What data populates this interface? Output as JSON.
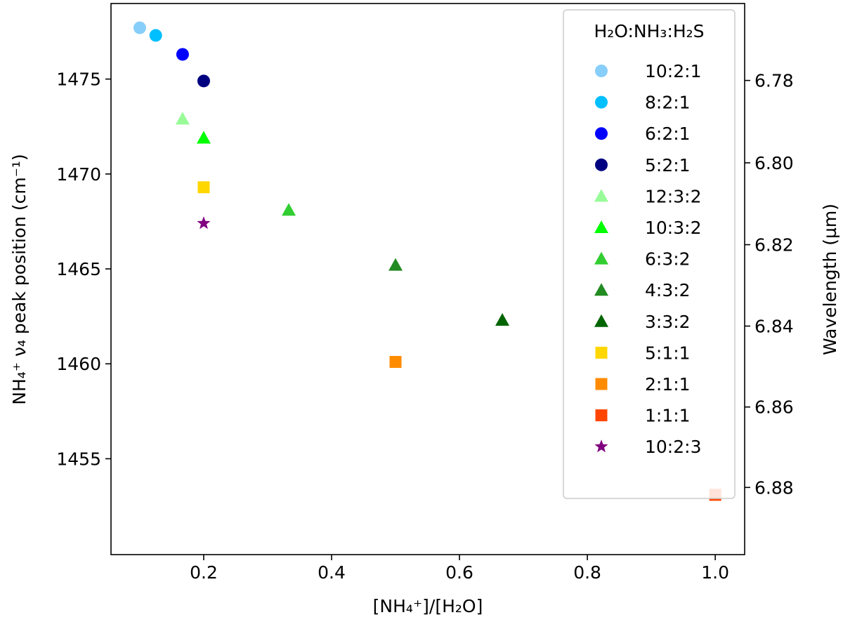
{
  "chart_data": {
    "type": "scatter",
    "xlabel": "[NH₄⁺]/[H₂O]",
    "ylabel": "NH₄⁺ ν₄ peak position (cm⁻¹)",
    "y2label": "Wavelength (µm)",
    "xlim": [
      0.055,
      1.046
    ],
    "ylim": [
      1449.95,
      1478.98
    ],
    "xticks": [
      0.2,
      0.4,
      0.6,
      0.8,
      1.0
    ],
    "xtick_labels": [
      "0.2",
      "0.4",
      "0.6",
      "0.8",
      "1.0"
    ],
    "yticks": [
      1455,
      1460,
      1465,
      1470,
      1475
    ],
    "ytick_labels": [
      "1455",
      "1460",
      "1465",
      "1470",
      "1475"
    ],
    "y2ticks": [
      6.78,
      6.8,
      6.82,
      6.84,
      6.86,
      6.88
    ],
    "y2tick_labels": [
      "6.78",
      "6.80",
      "6.82",
      "6.84",
      "6.86",
      "6.88"
    ],
    "grid": false,
    "legend_title": "H₂O:NH₃:H₂S",
    "legend_placement": "upper-right",
    "series": [
      {
        "name": "10:2:1",
        "marker": "circle",
        "color": "#87CEFA",
        "x": [
          0.1
        ],
        "y": [
          1477.7
        ]
      },
      {
        "name": "8:2:1",
        "marker": "circle",
        "color": "#00BFFF",
        "x": [
          0.125
        ],
        "y": [
          1477.3
        ]
      },
      {
        "name": "6:2:1",
        "marker": "circle",
        "color": "#0000FF",
        "x": [
          0.167
        ],
        "y": [
          1476.3
        ]
      },
      {
        "name": "5:2:1",
        "marker": "circle",
        "color": "#000080",
        "x": [
          0.2
        ],
        "y": [
          1474.9
        ]
      },
      {
        "name": "12:3:2",
        "marker": "triangle",
        "color": "#98FB98",
        "x": [
          0.167
        ],
        "y": [
          1472.9
        ]
      },
      {
        "name": "10:3:2",
        "marker": "triangle",
        "color": "#00FF00",
        "x": [
          0.2
        ],
        "y": [
          1471.9
        ]
      },
      {
        "name": "6:3:2",
        "marker": "triangle",
        "color": "#32CD32",
        "x": [
          0.333
        ],
        "y": [
          1468.1
        ]
      },
      {
        "name": "4:3:2",
        "marker": "triangle",
        "color": "#228B22",
        "x": [
          0.5
        ],
        "y": [
          1465.2
        ]
      },
      {
        "name": "3:3:2",
        "marker": "triangle",
        "color": "#006400",
        "x": [
          0.667
        ],
        "y": [
          1462.3
        ]
      },
      {
        "name": "5:1:1",
        "marker": "square",
        "color": "#FFD700",
        "x": [
          0.2
        ],
        "y": [
          1469.3
        ]
      },
      {
        "name": "2:1:1",
        "marker": "square",
        "color": "#FF8C00",
        "x": [
          0.5
        ],
        "y": [
          1460.1
        ]
      },
      {
        "name": "1:1:1",
        "marker": "square",
        "color": "#FF4500",
        "x": [
          1.0
        ],
        "y": [
          1453.1
        ]
      },
      {
        "name": "10:2:3",
        "marker": "star",
        "color": "#800080",
        "x": [
          0.2
        ],
        "y": [
          1467.4
        ]
      }
    ]
  }
}
